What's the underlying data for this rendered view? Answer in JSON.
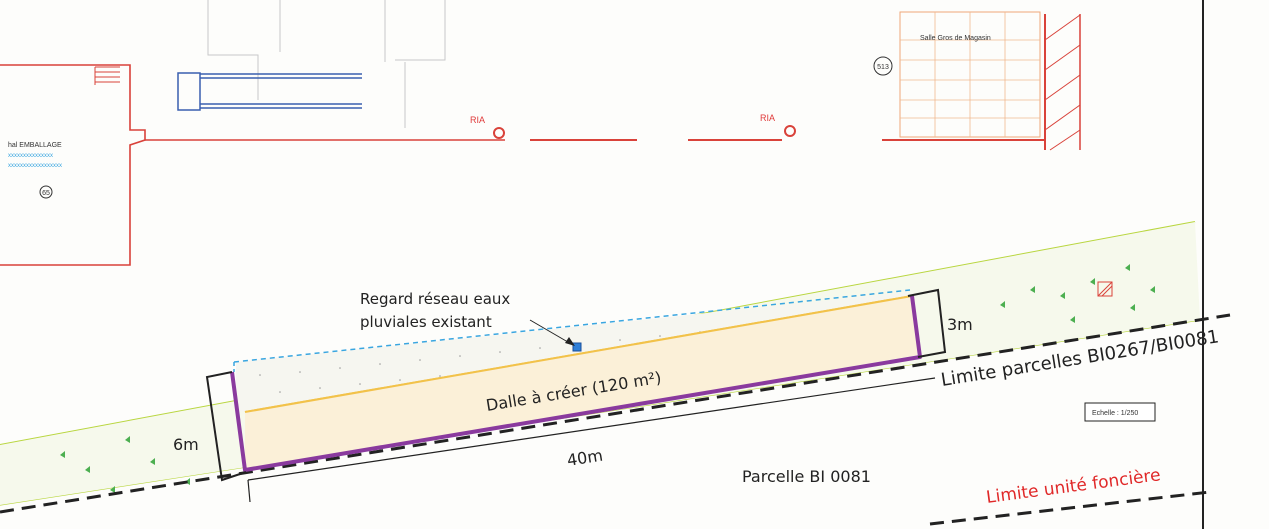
{
  "existing_buildings": {
    "left_building_name": "hal EMBALLAGE",
    "left_building_lines": [
      "xxxxxxxxxxxxxxx",
      "xxxxxxxxxxxxxxxxxx"
    ],
    "left_building_number": "65",
    "right_building_name": "Salle Gros de Magasin",
    "right_building_number": "513",
    "hydrant_label_1": "RIA",
    "hydrant_label_2": "RIA"
  },
  "annotations": {
    "drain_label_line1": "Regard réseau eaux",
    "drain_label_line2": "pluviales existant",
    "slab_label": "Dalle à créer (120 m²)",
    "width_right": "3m",
    "width_left": "6m",
    "length": "40m",
    "parcel_limit": "Limite parcelles BI0267/BI0081",
    "parcel": "Parcelle BI 0081",
    "property_limit": "Limite unité foncière",
    "scale": "Echelle : 1/250"
  },
  "colors": {
    "building_outline": "#d9423a",
    "slab_fill": "#fbf0d8",
    "slab_edge": "#f2c24a",
    "slab_border": "#8a3a9e",
    "drain_zone": "#3aa6e0",
    "green_strip": "#b9d640",
    "property_limit_text": "#e02828"
  }
}
